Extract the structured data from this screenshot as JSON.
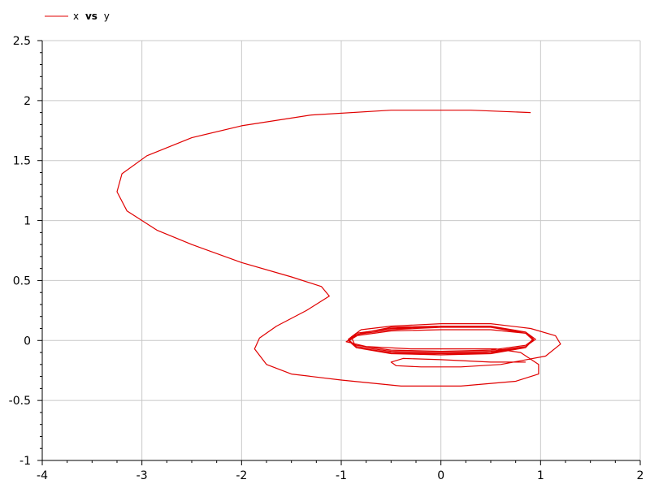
{
  "chart_data": {
    "type": "line",
    "title": "",
    "xlabel": "",
    "ylabel": "",
    "xlim": [
      -4,
      2
    ],
    "ylim": [
      -1,
      2.5
    ],
    "grid": true,
    "legend": {
      "placement": "top-left",
      "label_parts": [
        "x",
        "vs",
        "y"
      ]
    },
    "x_ticks": [
      "-4",
      "-3",
      "-2",
      "-1",
      "0",
      "1",
      "2"
    ],
    "y_ticks": [
      "-1",
      "-0.5",
      "0",
      "0.5",
      "1",
      "1.5",
      "2",
      "2.5"
    ],
    "colors": {
      "series": "#e00000",
      "grid": "#c8c8c8",
      "axis": "#000000"
    },
    "series": [
      {
        "name": "x vs y",
        "points": [
          [
            0.9,
            1.9
          ],
          [
            0.3,
            1.92
          ],
          [
            -0.5,
            1.92
          ],
          [
            -1.3,
            1.88
          ],
          [
            -2.0,
            1.79
          ],
          [
            -2.5,
            1.69
          ],
          [
            -2.95,
            1.54
          ],
          [
            -3.2,
            1.39
          ],
          [
            -3.25,
            1.24
          ],
          [
            -3.15,
            1.08
          ],
          [
            -2.85,
            0.92
          ],
          [
            -2.5,
            0.8
          ],
          [
            -2.0,
            0.65
          ],
          [
            -1.5,
            0.53
          ],
          [
            -1.2,
            0.45
          ],
          [
            -1.12,
            0.37
          ],
          [
            -1.35,
            0.25
          ],
          [
            -1.65,
            0.12
          ],
          [
            -1.82,
            0.02
          ],
          [
            -1.87,
            -0.07
          ],
          [
            -1.75,
            -0.2
          ],
          [
            -1.5,
            -0.28
          ],
          [
            -1.0,
            -0.33
          ],
          [
            -0.4,
            -0.38
          ],
          [
            0.2,
            -0.38
          ],
          [
            0.75,
            -0.34
          ],
          [
            0.98,
            -0.28
          ],
          [
            0.98,
            -0.2
          ],
          [
            0.8,
            -0.1
          ],
          [
            0.55,
            -0.07
          ],
          [
            0.3,
            -0.07
          ],
          [
            -0.3,
            -0.07
          ],
          [
            -0.75,
            -0.05
          ],
          [
            -0.95,
            -0.01
          ],
          [
            -0.85,
            0.04
          ],
          [
            -0.5,
            0.08
          ],
          [
            0.0,
            0.09
          ],
          [
            0.5,
            0.09
          ],
          [
            0.85,
            0.06
          ],
          [
            0.93,
            0.01
          ],
          [
            0.85,
            -0.04
          ],
          [
            0.5,
            -0.08
          ],
          [
            0.0,
            -0.09
          ],
          [
            -0.5,
            -0.08
          ],
          [
            -0.85,
            -0.04
          ],
          [
            -0.93,
            0.0
          ],
          [
            -0.85,
            0.05
          ],
          [
            -0.5,
            0.09
          ],
          [
            0.0,
            0.11
          ],
          [
            0.5,
            0.11
          ],
          [
            0.85,
            0.06
          ],
          [
            0.93,
            0.0
          ],
          [
            0.85,
            -0.05
          ],
          [
            0.5,
            -0.09
          ],
          [
            0.0,
            -0.1
          ],
          [
            -0.5,
            -0.09
          ],
          [
            -0.85,
            -0.05
          ],
          [
            -0.93,
            0.01
          ],
          [
            -0.85,
            0.06
          ],
          [
            -0.5,
            0.1
          ],
          [
            0.0,
            0.11
          ],
          [
            0.5,
            0.11
          ],
          [
            0.85,
            0.07
          ],
          [
            0.95,
            0.01
          ],
          [
            0.85,
            -0.05
          ],
          [
            0.5,
            -0.1
          ],
          [
            0.0,
            -0.11
          ],
          [
            -0.5,
            -0.1
          ],
          [
            -0.85,
            -0.06
          ],
          [
            -0.93,
            0.0
          ],
          [
            -0.85,
            0.06
          ],
          [
            -0.5,
            0.1
          ],
          [
            0.0,
            0.12
          ],
          [
            0.5,
            0.12
          ],
          [
            0.85,
            0.07
          ],
          [
            0.93,
            0.01
          ],
          [
            0.85,
            -0.06
          ],
          [
            0.5,
            -0.1
          ],
          [
            0.0,
            -0.12
          ],
          [
            -0.5,
            -0.1
          ],
          [
            -0.85,
            -0.06
          ],
          [
            -0.92,
            0.0
          ],
          [
            -0.8,
            0.06
          ],
          [
            -0.5,
            0.11
          ],
          [
            0.0,
            0.12
          ],
          [
            0.5,
            0.12
          ],
          [
            0.85,
            0.07
          ],
          [
            0.92,
            0.01
          ],
          [
            0.85,
            -0.06
          ],
          [
            0.5,
            -0.11
          ],
          [
            0.0,
            -0.12
          ],
          [
            -0.5,
            -0.11
          ],
          [
            -0.85,
            -0.06
          ],
          [
            -0.9,
            0.03
          ],
          [
            -0.8,
            0.09
          ],
          [
            -0.5,
            0.12
          ],
          [
            0.0,
            0.14
          ],
          [
            0.5,
            0.14
          ],
          [
            0.9,
            0.1
          ],
          [
            1.15,
            0.04
          ],
          [
            1.2,
            -0.03
          ],
          [
            1.05,
            -0.13
          ],
          [
            0.6,
            -0.2
          ],
          [
            0.2,
            -0.22
          ],
          [
            -0.2,
            -0.22
          ],
          [
            -0.45,
            -0.21
          ],
          [
            -0.5,
            -0.18
          ],
          [
            -0.38,
            -0.15
          ],
          [
            0.0,
            -0.16
          ],
          [
            0.5,
            -0.18
          ],
          [
            0.85,
            -0.18
          ]
        ]
      }
    ]
  }
}
